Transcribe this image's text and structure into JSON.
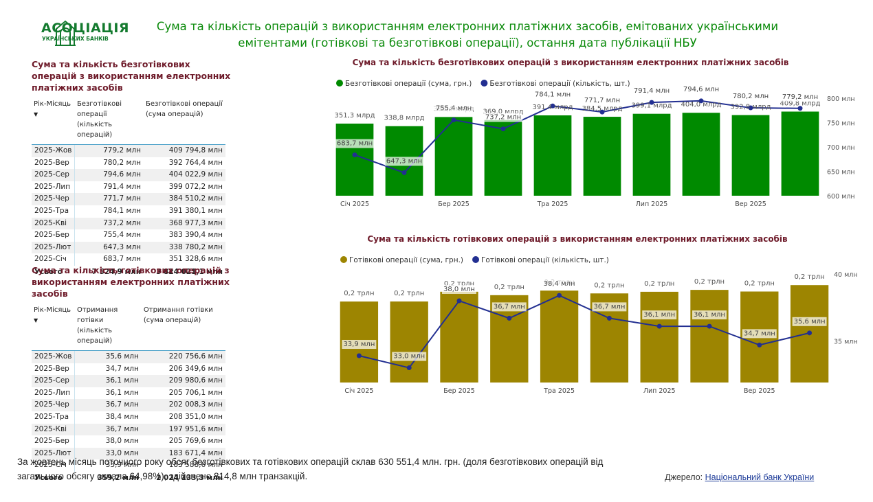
{
  "header": {
    "logo_title": "АСОЦІАЦІЯ",
    "logo_subtitle": "УКРАЇНСЬКИХ БАНКІВ",
    "title": "Сума та кількість операцій з використанням електронних платіжних засобів, емітованих українськими емітентами (готівкові та безготівкові операції), остання дата публікації НБУ"
  },
  "tables": [
    {
      "title": "Сума та кількість безготівкових операцій з використанням електронних платіжних засобів",
      "columns": [
        "Рік-Місяць",
        "Безготівкові операції (кількість операцій)",
        "Безготівкові операції (сума операцій)"
      ],
      "rows": [
        [
          "2025-Жов",
          "779,2 млн",
          "409 794,8 млн"
        ],
        [
          "2025-Вер",
          "780,2 млн",
          "392 764,4 млн"
        ],
        [
          "2025-Сер",
          "794,6 млн",
          "404 022,9 млн"
        ],
        [
          "2025-Лип",
          "791,4 млн",
          "399 072,2 млн"
        ],
        [
          "2025-Чер",
          "771,7 млн",
          "384 510,2 млн"
        ],
        [
          "2025-Тра",
          "784,1 млн",
          "391 380,1 млн"
        ],
        [
          "2025-Кві",
          "737,2 млн",
          "368 977,3 млн"
        ],
        [
          "2025-Бер",
          "755,4 млн",
          "383 390,4 млн"
        ],
        [
          "2025-Лют",
          "647,3 млн",
          "338 780,2 млн"
        ],
        [
          "2025-Січ",
          "683,7 млн",
          "351 328,6 млн"
        ]
      ],
      "total": [
        "Усього",
        "7 524,9 млн",
        "3 824 021,1 млн"
      ]
    },
    {
      "title": "Сума та кількість готівкових операцій з використанням електронних платіжних засобів",
      "columns": [
        "Рік-Місяць",
        "Отримання готівки (кількість операцій)",
        "Отримання готівки (сума операцій)"
      ],
      "rows": [
        [
          "2025-Жов",
          "35,6 млн",
          "220 756,6 млн"
        ],
        [
          "2025-Вер",
          "34,7 млн",
          "206 349,6 млн"
        ],
        [
          "2025-Сер",
          "36,1 млн",
          "209 980,6 млн"
        ],
        [
          "2025-Лип",
          "36,1 млн",
          "205 706,1 млн"
        ],
        [
          "2025-Чер",
          "36,7 млн",
          "202 008,3 млн"
        ],
        [
          "2025-Тра",
          "38,4 млн",
          "208 351,0 млн"
        ],
        [
          "2025-Кві",
          "36,7 млн",
          "197 951,6 млн"
        ],
        [
          "2025-Бер",
          "38,0 млн",
          "205 769,6 млн"
        ],
        [
          "2025-Лют",
          "33,0 млн",
          "183 671,4 млн"
        ],
        [
          "2025-Січ",
          "33,9 млн",
          "183 588,6 млн"
        ]
      ],
      "total": [
        "Усього",
        "359,2 млн",
        "2 024 133,3 млн"
      ]
    }
  ],
  "chart_data": [
    {
      "type": "combo",
      "title": "Сума та кількість безготівкових операцій з використанням електронних платіжних засобів",
      "categories": [
        "Січ 2025",
        null,
        "Бер 2025",
        null,
        "Тра 2025",
        null,
        "Лип 2025",
        null,
        "Вер 2025",
        null
      ],
      "ylim": [
        0,
        475
      ],
      "y2lim": [
        600,
        800
      ],
      "y2ticks": [
        {
          "value": 600,
          "label": "600 млн"
        },
        {
          "value": 650,
          "label": "650 млн"
        },
        {
          "value": 700,
          "label": "700 млн"
        },
        {
          "value": 750,
          "label": "750 млн"
        },
        {
          "value": 800,
          "label": "800 млн"
        }
      ],
      "series": [
        {
          "name": "Безготівкові операції (сума, грн.)",
          "type": "bar",
          "color": "#008a00",
          "values": [
            351.3,
            338.8,
            383.4,
            369.0,
            391.4,
            384.5,
            399.1,
            404.0,
            392.8,
            409.8
          ],
          "value_labels": [
            "351,3 млрд",
            "338,8 млрд",
            "383,4 млрд",
            "369,0 млрд",
            "391,4 млрд",
            "384,5 млрд",
            "399,1 млрд",
            "404,0 млрд",
            "392,8 млрд",
            "409,8 млрд"
          ]
        },
        {
          "name": "Безготівкові операції (кількість, шт.)",
          "type": "line",
          "axis": "y2",
          "color": "#222f91",
          "values": [
            683.7,
            647.3,
            755.4,
            737.2,
            784.1,
            771.7,
            791.4,
            794.6,
            780.2,
            779.2
          ],
          "value_labels": [
            "683,7 млн",
            "647,3 млн",
            "755,4 млн",
            "737,2 млн",
            "784,1 млн",
            "771,7 млн",
            "791,4 млн",
            "794,6 млн",
            "780,2 млн",
            "779,2 млн"
          ]
        }
      ]
    },
    {
      "type": "combo",
      "title": "Сума та кількість готівкових операцій з використанням електронних платіжних засобів",
      "categories": [
        "Січ 2025",
        null,
        "Бер 2025",
        null,
        "Тра 2025",
        null,
        "Лип 2025",
        null,
        "Вер 2025",
        null
      ],
      "ylim": [
        0,
        0.246
      ],
      "y2lim": [
        31.9,
        40
      ],
      "y2ticks": [
        {
          "value": 35,
          "label": "35 млн"
        },
        {
          "value": 40,
          "label": "40 млн"
        }
      ],
      "series": [
        {
          "name": "Готівкові операції (сума, грн.)",
          "type": "bar",
          "color": "#9d8501",
          "values": [
            0.1836,
            0.1837,
            0.2058,
            0.198,
            0.2084,
            0.202,
            0.2057,
            0.21,
            0.2063,
            0.2208
          ],
          "value_labels": [
            "0,2 трлн",
            "0,2 трлн",
            "0,2 трлн",
            "0,2 трлн",
            "0,2 трлн",
            "0,2 трлн",
            "0,2 трлн",
            "0,2 трлн",
            "0,2 трлн",
            "0,2 трлн"
          ]
        },
        {
          "name": "Готівкові операції (кількість, шт.)",
          "type": "line",
          "axis": "y2",
          "color": "#222f91",
          "values": [
            33.9,
            33.0,
            38.0,
            36.7,
            38.4,
            36.7,
            36.1,
            36.1,
            34.7,
            35.6
          ],
          "value_labels": [
            "33,9 млн",
            "33,0 млн",
            "38,0 млн",
            "36,7 млн",
            "38,4 млн",
            "36,7 млн",
            "36,1 млн",
            "36,1 млн",
            "34,7 млн",
            "35,6 млн"
          ]
        }
      ]
    }
  ],
  "footer": {
    "text": "За жовтень  місяць поточного року  обсяг безготівкових та готівкових операцій склав  630 551,4 млн. грн. (доля безготівкових операцій від загального обсягу склала 64,98%), здійснено 814,8 млн транзакцій.",
    "source_label": "Джерело:",
    "source_link": "Національний банк України"
  }
}
